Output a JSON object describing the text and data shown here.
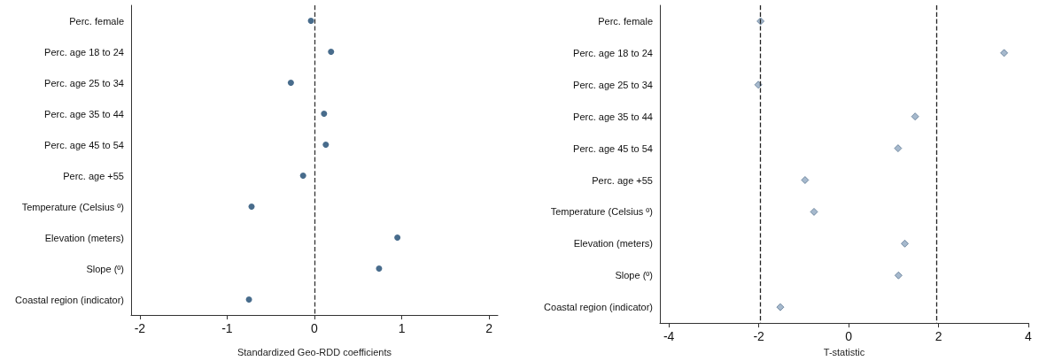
{
  "chart_data": [
    {
      "type": "scatter",
      "orientation": "horizontal",
      "xlabel": "Standardized Geo-RDD coefficients",
      "categories": [
        "Perc. female",
        "Perc. age 18 to 24",
        "Perc. age 25 to 34",
        "Perc. age 35 to 44",
        "Perc. age 45 to 54",
        "Perc. age +55",
        "Temperature (Celsius º)",
        "Elevation (meters)",
        "Slope (º)",
        "Coastal region (indicator)"
      ],
      "series": [
        {
          "color": "#1a476f",
          "values": [
            -0.04,
            0.19,
            -0.27,
            0.11,
            0.13,
            -0.13,
            -0.72,
            0.95,
            0.74,
            -0.75
          ]
        }
      ],
      "marker": "circle",
      "xlim": [
        -2.1,
        2.1
      ],
      "xticks": [
        -2,
        -1,
        0,
        1,
        2
      ],
      "grid": false,
      "ref_lines": [
        {
          "axis": "x",
          "value": 0,
          "line_style": "dashed",
          "color": "#333333"
        }
      ]
    },
    {
      "type": "scatter",
      "orientation": "horizontal",
      "xlabel": "T-statistic",
      "categories": [
        "Perc. female",
        "Perc. age 18 to 24",
        "Perc. age 25 to 34",
        "Perc. age 35 to 44",
        "Perc. age 45 to 54",
        "Perc. age +55",
        "Temperature (Celsius º)",
        "Elevation (meters)",
        "Slope (º)",
        "Coastal region (indicator)"
      ],
      "series": [
        {
          "color": "#90a8c0",
          "values": [
            -1.96,
            3.46,
            -2.01,
            1.48,
            1.1,
            -0.97,
            -0.77,
            1.25,
            1.11,
            -1.52
          ]
        }
      ],
      "marker": "diamond",
      "xlim": [
        -4.2,
        4
      ],
      "xticks": [
        -4,
        -2,
        0,
        2,
        4
      ],
      "grid": false,
      "ref_lines": [
        {
          "axis": "x",
          "value": -1.96,
          "line_style": "dashed",
          "color": "#222222"
        },
        {
          "axis": "x",
          "value": 1.96,
          "line_style": "dashed",
          "color": "#222222"
        }
      ]
    }
  ]
}
